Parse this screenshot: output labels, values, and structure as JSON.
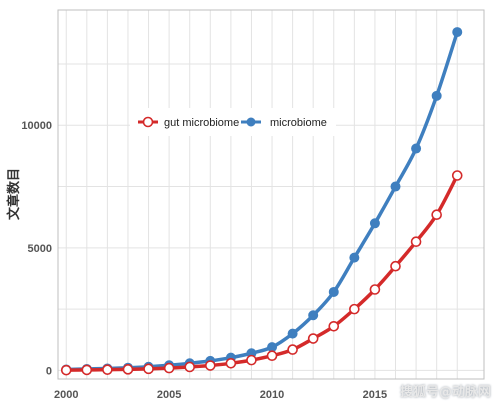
{
  "chart_data": {
    "type": "line",
    "title": "",
    "xlabel": "",
    "ylabel": "文章数目",
    "x": [
      2000,
      2001,
      2002,
      2003,
      2004,
      2005,
      2006,
      2007,
      2008,
      2009,
      2010,
      2011,
      2012,
      2013,
      2014,
      2015,
      2016,
      2017,
      2018,
      2019
    ],
    "xticks": [
      "2000",
      "2005",
      "2010",
      "2015"
    ],
    "yticks": [
      "0",
      "5000",
      "10000"
    ],
    "xlim": [
      1999.6,
      2020.3
    ],
    "ylim": [
      -350,
      14700
    ],
    "grid": true,
    "legend_position": "top-left",
    "series": [
      {
        "name": "gut microbiome",
        "color": "#d42a2a",
        "marker": "hollow-circle",
        "values": [
          10,
          20,
          30,
          45,
          65,
          95,
          140,
          200,
          290,
          420,
          600,
          850,
          1300,
          1800,
          2500,
          3300,
          4250,
          5250,
          6350,
          7950
        ]
      },
      {
        "name": "microbiome",
        "color": "#3f7fbf",
        "marker": "filled-circle",
        "values": [
          40,
          60,
          80,
          110,
          150,
          210,
          290,
          390,
          520,
          700,
          950,
          1500,
          2250,
          3200,
          4600,
          6000,
          7500,
          9050,
          11200,
          13800
        ]
      }
    ]
  },
  "watermark": "搜狐号@动脉网"
}
